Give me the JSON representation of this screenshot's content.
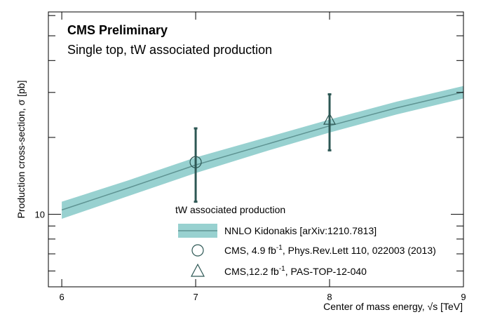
{
  "chart_data": {
    "type": "line",
    "title": "CMS Preliminary",
    "subtitle": "Single top, tW associated production",
    "xlabel": "Center of mass energy, √s [TeV]",
    "ylabel": "Production cross-section, σ [pb]",
    "xlim": [
      5.9,
      9.0
    ],
    "ylim": [
      5.2,
      62.0
    ],
    "yscale": "log",
    "x_ticks": [
      6,
      7,
      8,
      9
    ],
    "x_tick_labels": [
      "6",
      "7",
      "8",
      "9"
    ],
    "y_major_ticks": [
      10
    ],
    "y_tick_labels": [
      "10"
    ],
    "y_minor_ticks": [
      6,
      7,
      8,
      9,
      20,
      30,
      40,
      50,
      60
    ],
    "legend": {
      "title": "tW associated production",
      "position": "bottom-right",
      "entries": [
        {
          "key": "theory",
          "symbol": "band",
          "pre": "NNLO Kidonakis [arXiv:1210.7813]",
          "sup": "",
          "post": ""
        },
        {
          "key": "cms7",
          "symbol": "circle",
          "pre": "CMS, 4.9 fb",
          "sup": "-1",
          "post": ", Phys.Rev.Lett 110, 022003 (2013)"
        },
        {
          "key": "cms8",
          "symbol": "triangle",
          "pre": "CMS,12.2 fb",
          "sup": "-1",
          "post": ", PAS-TOP-12-040"
        }
      ]
    },
    "theory": {
      "name": "NNLO Kidonakis [arXiv:1210.7813]",
      "x": [
        6.0,
        6.5,
        7.0,
        7.5,
        8.0,
        8.5,
        9.0
      ],
      "y": [
        10.4,
        12.7,
        15.6,
        18.6,
        22.2,
        26.1,
        30.1
      ],
      "y_low": [
        9.6,
        11.8,
        14.5,
        17.5,
        20.9,
        24.6,
        28.4
      ],
      "y_high": [
        11.2,
        13.6,
        16.7,
        19.8,
        23.5,
        27.6,
        31.8
      ]
    },
    "measurements": [
      {
        "name": "CMS, 4.9 fb-1, Phys.Rev.Lett 110, 022003 (2013)",
        "marker": "circle",
        "x": 7.0,
        "y": 16.0,
        "y_low": 11.2,
        "y_high": 21.7
      },
      {
        "name": "CMS,12.2 fb-1, PAS-TOP-12-040",
        "marker": "triangle",
        "x": 8.0,
        "y": 23.4,
        "y_low": 17.8,
        "y_high": 29.5
      }
    ],
    "colors": {
      "band": "#98d1d0",
      "line": "#5f9493",
      "marker": "#2d5754",
      "axis": "#000000"
    }
  }
}
